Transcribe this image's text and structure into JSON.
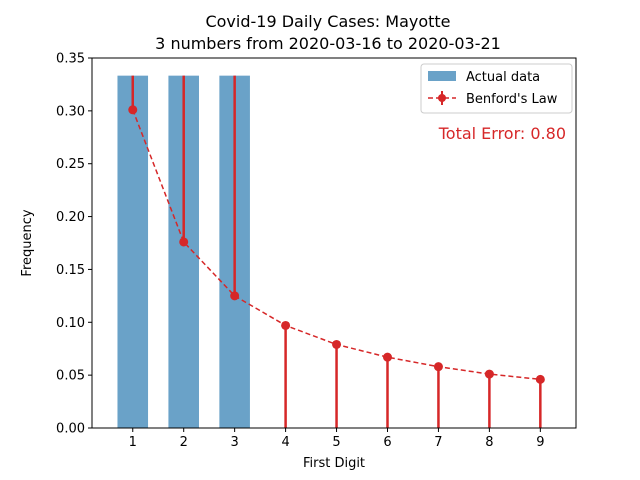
{
  "chart_data": {
    "type": "bar",
    "title": "Covid-19 Daily Cases: Mayotte",
    "subtitle": "3 numbers from 2020-03-16 to 2020-03-21",
    "xlabel": "First Digit",
    "ylabel": "Frequency",
    "categories": [
      "1",
      "2",
      "3",
      "4",
      "5",
      "6",
      "7",
      "8",
      "9"
    ],
    "ylim": [
      0,
      0.35
    ],
    "xlim": [
      0.2,
      9.7
    ],
    "yticks": [
      "0.00",
      "0.05",
      "0.10",
      "0.15",
      "0.20",
      "0.25",
      "0.30",
      "0.35"
    ],
    "yticks_values": [
      0,
      0.05,
      0.1,
      0.15,
      0.2,
      0.25,
      0.3,
      0.35
    ],
    "grid": false,
    "legend_position": "top-right",
    "series": [
      {
        "name": "Actual data",
        "type": "bar",
        "color": "#6aa2c8",
        "values": [
          0.3333,
          0.3333,
          0.3333,
          0,
          0,
          0,
          0,
          0,
          0
        ]
      },
      {
        "name": "Benford's Law",
        "type": "line-errorbar",
        "color": "#d62728",
        "values": [
          0.301,
          0.176,
          0.125,
          0.097,
          0.079,
          0.067,
          0.058,
          0.051,
          0.046
        ]
      }
    ],
    "annotation": {
      "text": "Total Error: 0.80",
      "color": "#d62728",
      "position": "top-right"
    }
  }
}
